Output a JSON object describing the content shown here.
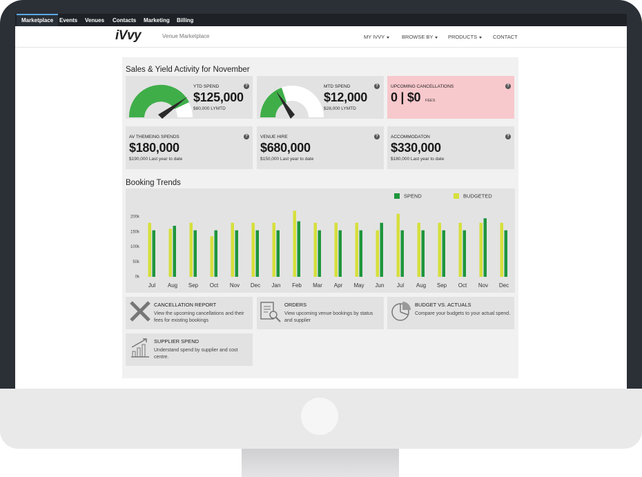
{
  "nav": {
    "items": [
      "Marketplace",
      "Events",
      "Venues",
      "Contacts",
      "Marketing",
      "Billing"
    ]
  },
  "header": {
    "logo": "iVvy",
    "subtitle": "Venue Marketplace",
    "menu": [
      "MY IVVY",
      "BROWSE BY",
      "PRODUCTS",
      "CONTACT"
    ]
  },
  "help_icon": "?",
  "sales": {
    "title": "Sales & Yield Activity for November",
    "cards": [
      {
        "label": "YTD SPEND",
        "value": "$125,000",
        "note": "$80,000 LYMTD"
      },
      {
        "label": "MTD SPEND",
        "value": "$12,000",
        "note": "$28,000 LYMTD"
      },
      {
        "label": "UPCOMING CANCELLATIONS",
        "value": "0 | $0",
        "note": "FEES"
      },
      {
        "label": "AV THEMEING SPENDS",
        "value": "$180,000",
        "note": "$190,000 Last year to date"
      },
      {
        "label": "VENUE HIRE",
        "value": "$680,000",
        "note": "$150,000 Last year to date"
      },
      {
        "label": "ACCOMMODATON",
        "value": "$330,000",
        "note": "$180,000 Last year to date"
      }
    ]
  },
  "chart_data": {
    "type": "bar",
    "title": "Booking Trends",
    "categories": [
      "Jul",
      "Aug",
      "Sep",
      "Oct",
      "Nov",
      "Dec",
      "Jan",
      "Feb",
      "Mar",
      "Apr",
      "May",
      "Jun",
      "Jul",
      "Aug",
      "Sep",
      "Oct",
      "Nov",
      "Dec"
    ],
    "series": [
      {
        "name": "SPEND",
        "color": "#1e963c",
        "values": [
          155,
          170,
          155,
          155,
          155,
          155,
          155,
          185,
          155,
          155,
          155,
          180,
          155,
          155,
          155,
          155,
          195,
          155
        ]
      },
      {
        "name": "BUDGETED",
        "color": "#d6df3b",
        "values": [
          180,
          160,
          180,
          135,
          180,
          180,
          180,
          220,
          180,
          180,
          180,
          155,
          210,
          180,
          180,
          180,
          180,
          180
        ]
      }
    ],
    "ylim": [
      0,
      230
    ],
    "yticks": [
      {
        "value": 0,
        "label": "0k"
      },
      {
        "value": 50,
        "label": "50k"
      },
      {
        "value": 100,
        "label": "100k"
      },
      {
        "value": 150,
        "label": "150k"
      },
      {
        "value": 200,
        "label": "200k"
      }
    ]
  },
  "reports": [
    {
      "title": "CANCELLATION REPORT",
      "text": "View the upcoming cancellations and their fees for existing bookings"
    },
    {
      "title": "ORDERS",
      "text": "View upcoming venue bookings by status and supplier"
    },
    {
      "title": "BUDGET VS. ACTUALS",
      "text": "Compare your budgets to your actual spend."
    },
    {
      "title": "SUPPLIER SPEND",
      "text": "Understand spend by supplier and cost centre."
    }
  ]
}
